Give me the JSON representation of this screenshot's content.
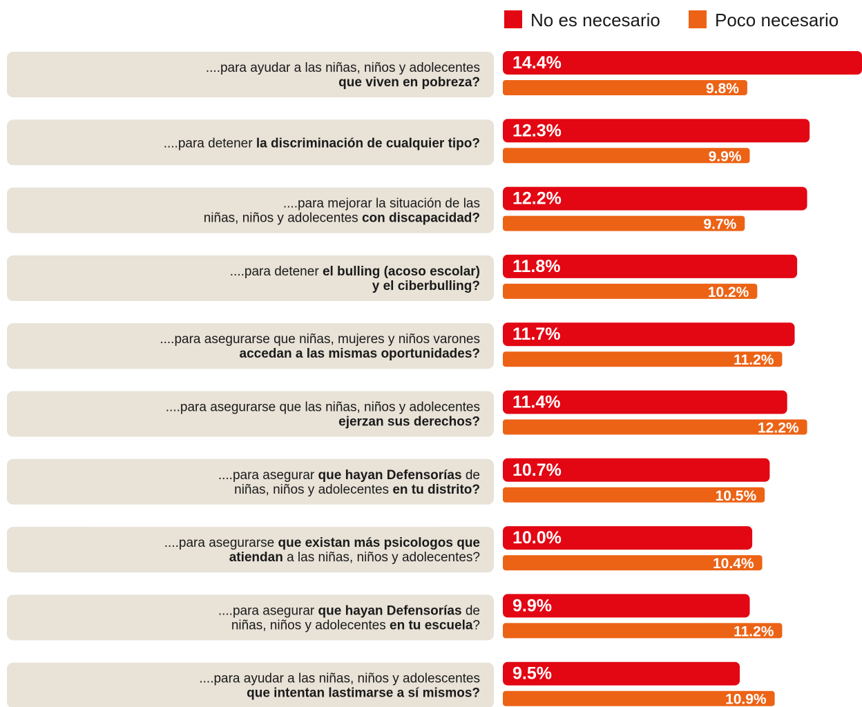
{
  "chart_data": {
    "type": "hbar",
    "categories": [
      [
        [
          {
            "text": "....para ayudar a las niñas, niños y adolecentes",
            "bold": false
          }
        ],
        [
          {
            "text": "que viven en pobreza?",
            "bold": true
          }
        ]
      ],
      [
        [
          {
            "text": "....para detener ",
            "bold": false
          },
          {
            "text": "la discriminación de cualquier tipo?",
            "bold": true
          }
        ]
      ],
      [
        [
          {
            "text": "....para mejorar la situación de las",
            "bold": false
          }
        ],
        [
          {
            "text": "niñas, niños y adolecentes ",
            "bold": false
          },
          {
            "text": "con discapacidad?",
            "bold": true
          }
        ]
      ],
      [
        [
          {
            "text": "....para detener ",
            "bold": false
          },
          {
            "text": "el bulling (acoso escolar)",
            "bold": true
          }
        ],
        [
          {
            "text": "y el ciberbulling?",
            "bold": true
          }
        ]
      ],
      [
        [
          {
            "text": "....para asegurarse que niñas, mujeres y niños varones",
            "bold": false
          }
        ],
        [
          {
            "text": "accedan a las mismas oportunidades?",
            "bold": true
          }
        ]
      ],
      [
        [
          {
            "text": "....para asegurarse que las niñas, niños y adolecentes",
            "bold": false
          }
        ],
        [
          {
            "text": "ejerzan sus derechos?",
            "bold": true
          }
        ]
      ],
      [
        [
          {
            "text": "....para asegurar ",
            "bold": false
          },
          {
            "text": "que hayan Defensorías",
            "bold": true
          },
          {
            "text": " de",
            "bold": false
          }
        ],
        [
          {
            "text": "niñas, niños y adolecentes ",
            "bold": false
          },
          {
            "text": "en tu distrito?",
            "bold": true
          }
        ]
      ],
      [
        [
          {
            "text": "....para asegurarse ",
            "bold": false
          },
          {
            "text": "que existan más psicologos que",
            "bold": true
          }
        ],
        [
          {
            "text": "atiendan",
            "bold": true
          },
          {
            "text": " a las niñas, niños y adolecentes?",
            "bold": false
          }
        ]
      ],
      [
        [
          {
            "text": "....para asegurar ",
            "bold": false
          },
          {
            "text": "que hayan Defensorías",
            "bold": true
          },
          {
            "text": " de",
            "bold": false
          }
        ],
        [
          {
            "text": "niñas, niños y adolecentes ",
            "bold": false
          },
          {
            "text": "en tu escuela",
            "bold": true
          },
          {
            "text": "?",
            "bold": false
          }
        ]
      ],
      [
        [
          {
            "text": "....para ayudar a las niñas, niños y adolescentes",
            "bold": false
          }
        ],
        [
          {
            "text": "que intentan lastimarse a sí mismos?",
            "bold": true
          }
        ]
      ]
    ],
    "series": [
      {
        "name": "No es necesario",
        "color": "#e30613",
        "values": [
          14.4,
          12.3,
          12.2,
          11.8,
          11.7,
          11.4,
          10.7,
          10.0,
          9.9,
          9.5
        ],
        "value_labels": [
          "14.4%",
          "12.3%",
          "12.2%",
          "11.8%",
          "11.7%",
          "11.4%",
          "10.7%",
          "10.0%",
          "9.9%",
          "9.5%"
        ]
      },
      {
        "name": "Poco necesario",
        "color": "#ec6316",
        "values": [
          9.8,
          9.9,
          9.7,
          10.2,
          11.2,
          12.2,
          10.5,
          10.4,
          11.2,
          10.9
        ],
        "value_labels": [
          "9.8%",
          "9.9%",
          "9.7%",
          "10.2%",
          "11.2%",
          "12.2%",
          "10.5%",
          "10.4%",
          "11.2%",
          "10.9%"
        ]
      }
    ],
    "xlim": [
      0,
      14.4
    ],
    "legend": "top-right"
  }
}
